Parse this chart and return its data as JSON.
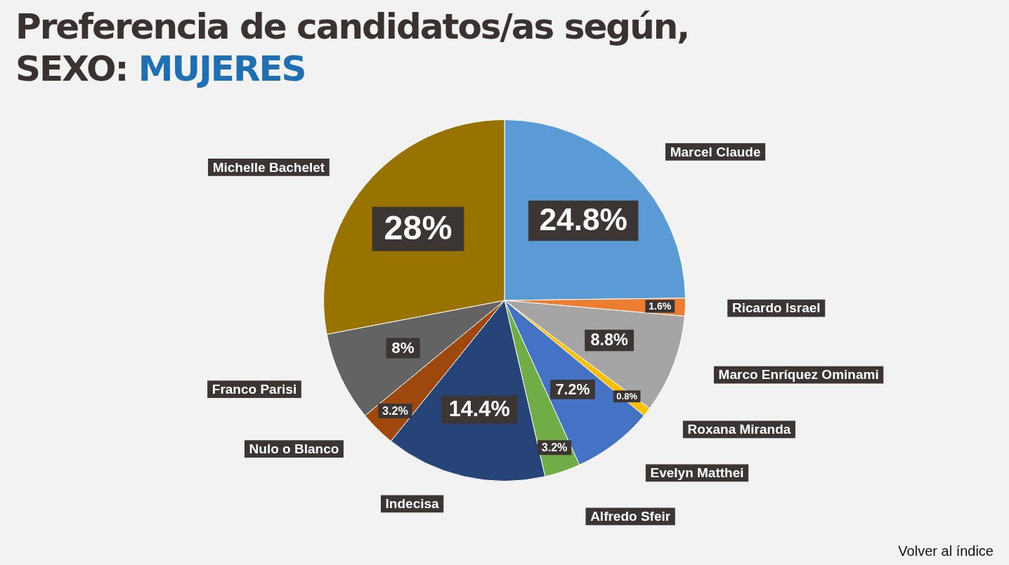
{
  "chart_data": {
    "type": "pie",
    "title": "Preferencia de candidatos/as según,",
    "subtitle": "SEXO: MUJERES",
    "categories": [
      "Marcel Claude",
      "Ricardo Israel",
      "Marco Enríquez Ominami",
      "Roxana Miranda",
      "Evelyn Matthei",
      "Alfredo Sfeir",
      "Indecisa",
      "Nulo o Blanco",
      "Franco Parisi",
      "Michelle Bachelet"
    ],
    "values": [
      24.8,
      1.6,
      8.8,
      0.8,
      7.2,
      3.2,
      14.4,
      3.2,
      8,
      28
    ],
    "value_labels": [
      "24.8%",
      "1.6%",
      "8.8%",
      "0.8%",
      "7.2%",
      "3.2%",
      "14.4%",
      "3.2%",
      "8%",
      "28%"
    ],
    "colors": [
      "#5b9bd5",
      "#ed7d31",
      "#a5a5a5",
      "#ffc000",
      "#4472c4",
      "#70ad47",
      "#264478",
      "#9e480e",
      "#636363",
      "#997300"
    ],
    "legend": false,
    "annotations": [
      "Volver al índice"
    ]
  }
}
